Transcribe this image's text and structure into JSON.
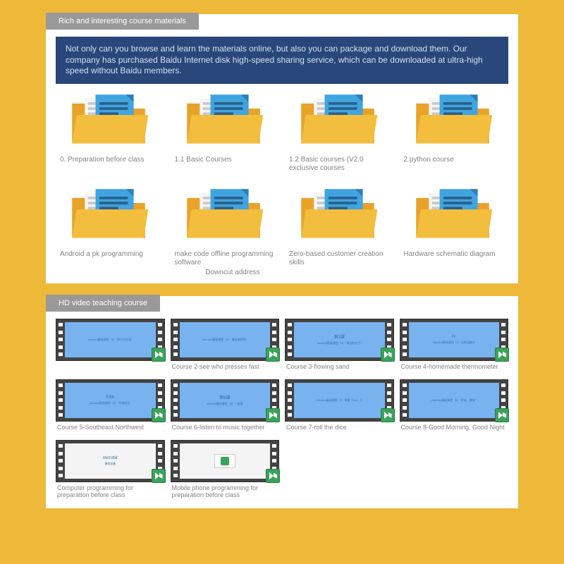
{
  "section1": {
    "header": "Rich and interesting course materials",
    "description": "Not only can you browse and learn the materials online, but also you can package and download them. Our company has purchased Baidu Internet disk high-speed sharing service, which can be downloaded at ultra-high speed without Baidu members.",
    "folders": [
      {
        "label": "0. Preparation before class"
      },
      {
        "label": "1.1 Basic Courses"
      },
      {
        "label": "1.2 Basic courses (V2.0 exclusive courses"
      },
      {
        "label": "2 python course"
      },
      {
        "label": "Android a pk programming"
      },
      {
        "label": "make code offline programming software",
        "sub": "Downcut address"
      },
      {
        "label": "Zero-based customer creation skills"
      },
      {
        "label": "Hardware schematic diagram"
      }
    ]
  },
  "section2": {
    "header": "HD video teaching course",
    "videos": [
      {
        "label": "",
        "screen_title": "",
        "screen_text": "microbit基础课程（1）\"向左向右走\""
      },
      {
        "label": "Course 2-see who presses fast",
        "screen_title": "",
        "screen_text": "microbit基础课程（2）\"看谁按得快\""
      },
      {
        "label": "Course 3-flowing sand",
        "screen_title": "第3课",
        "screen_text": "microbit基础课程（3）\"流动的沙子\""
      },
      {
        "label": "Course 4-homemade thermometer",
        "screen_title": "IV",
        "screen_text": "microbit基础课程（4）自制温度计"
      },
      {
        "label": "Course 5-Southeast Northwest",
        "screen_title": "Fifth",
        "screen_text": "microbit基础课程（5）\"东南西北\""
      },
      {
        "label": "Course 6-listen to music together",
        "screen_title": "第6课",
        "screen_text": "microbit基础课程（6）一起来"
      },
      {
        "label": "Course 7-roll the dice",
        "screen_title": "",
        "screen_text": "microbit基础课程（7）掷骰（tou）子"
      },
      {
        "label": "Course 8-Good Morning, Good Night",
        "screen_title": "",
        "screen_text": "microbit基础课程（8）\"早安，晚安\""
      },
      {
        "label": "Computer programming for preparation before class",
        "screen_title": "microbit",
        "screen_text": "课前准备",
        "white": true
      },
      {
        "label": "Mobile phone programming for preparation before class",
        "hardware": true
      }
    ]
  },
  "colors": {
    "page_bg": "#eeb938",
    "header_bg": "#989998",
    "banner_bg": "#29477a",
    "folder_body": "#f3bd3d",
    "folder_back": "#e9a228",
    "doc_white": "#f4f4f4",
    "doc_blue": "#3fa4e0",
    "doc_darkblue": "#2b5f87",
    "video_screen": "#78b3ef",
    "badge": "#3aa35a",
    "label_text": "#848484"
  }
}
